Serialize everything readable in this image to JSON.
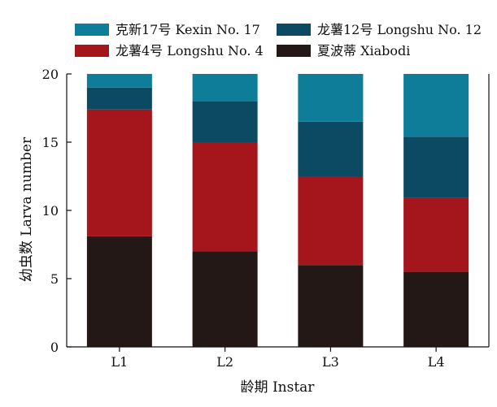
{
  "chart_data": {
    "type": "bar",
    "stacked": true,
    "categories": [
      "L1",
      "L2",
      "L3",
      "L4"
    ],
    "series": [
      {
        "name": "夏波蒂 Xiabodi",
        "color": "#231815",
        "values": [
          8.1,
          7.0,
          6.0,
          5.5
        ]
      },
      {
        "name": "龙薯4号 Longshu No. 4",
        "color": "#a5151c",
        "values": [
          9.3,
          8.0,
          6.5,
          5.4
        ]
      },
      {
        "name": "龙薯12号 Longshu No. 12",
        "color": "#0b4a62",
        "values": [
          1.6,
          3.0,
          4.0,
          4.5
        ]
      },
      {
        "name": "克新17号 Kexin No. 17",
        "color": "#0d7d99",
        "values": [
          1.0,
          2.0,
          3.5,
          4.6
        ]
      }
    ],
    "legend_order": [
      3,
      2,
      1,
      0
    ],
    "xlabel": "龄期 Instar",
    "ylabel": "幼虫数 Larva number",
    "ylim": [
      0,
      20
    ],
    "yticks": [
      0,
      5,
      10,
      15,
      20
    ],
    "grid": false,
    "legend_position": "top"
  }
}
